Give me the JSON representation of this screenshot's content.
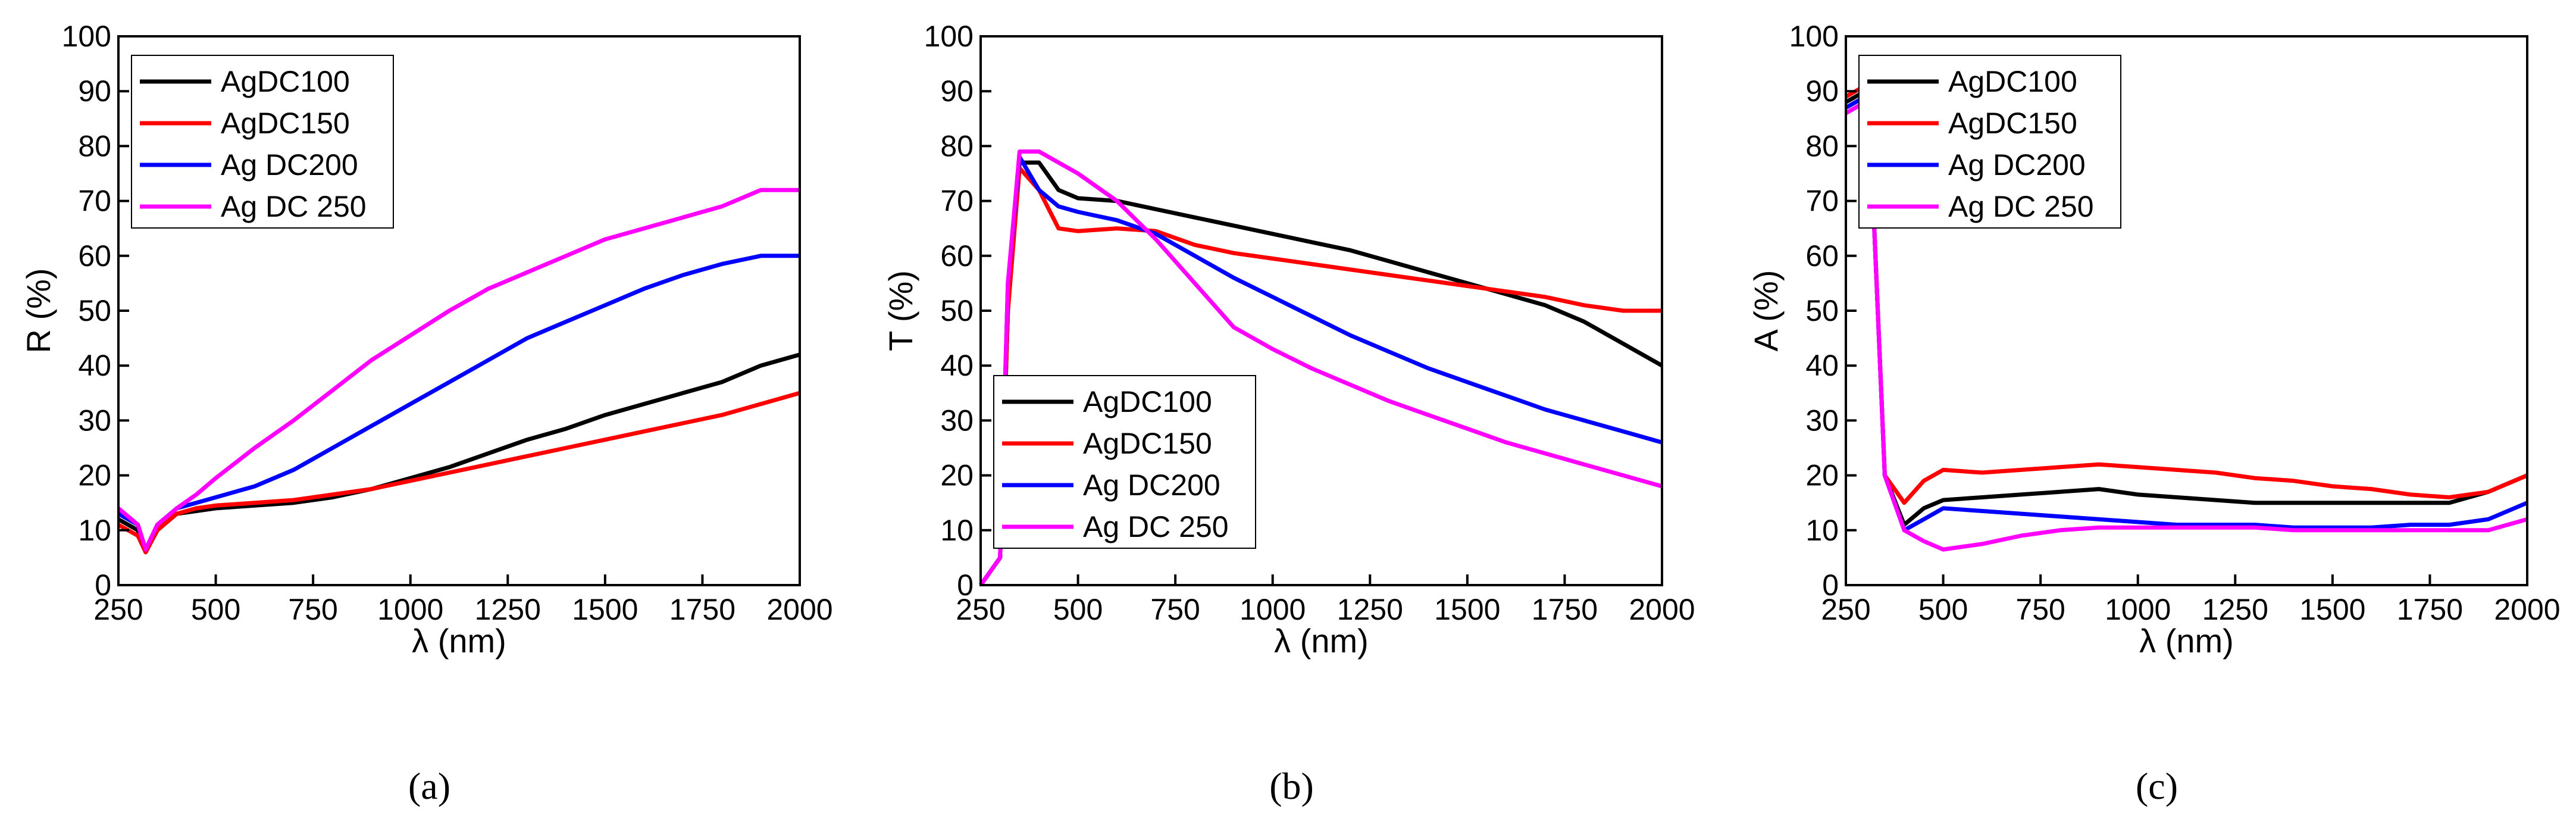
{
  "chart_data": [
    {
      "type": "line",
      "caption": "(a)",
      "ylabel": "R (%)",
      "xlabel": "λ (nm)",
      "legend": "upper left",
      "x": [
        250,
        300,
        320,
        350,
        400,
        450,
        500,
        600,
        700,
        800,
        900,
        1000,
        1100,
        1200,
        1300,
        1400,
        1500,
        1600,
        1700,
        1800,
        1900,
        2000
      ],
      "xlim": [
        250,
        2000
      ],
      "xticks": [
        250,
        500,
        750,
        1000,
        1250,
        1500,
        1750,
        2000
      ],
      "ylim": [
        0,
        100
      ],
      "yticks": [
        0,
        10,
        20,
        30,
        40,
        50,
        60,
        70,
        80,
        90,
        100
      ],
      "series": [
        {
          "name": "AgDC100",
          "color": "#000000",
          "values": [
            12,
            10,
            6,
            10,
            13,
            13.5,
            14,
            14.5,
            15,
            16,
            17.5,
            19.5,
            21.5,
            24,
            26.5,
            28.5,
            31,
            33,
            35,
            37,
            40,
            42
          ]
        },
        {
          "name": "AgDC150",
          "color": "#ff0000",
          "values": [
            11,
            9,
            6,
            10,
            13,
            14,
            14.5,
            15,
            15.5,
            16.5,
            17.5,
            19,
            20.5,
            22,
            23.5,
            25,
            26.5,
            28,
            29.5,
            31,
            33,
            35
          ]
        },
        {
          "name": "Ag DC200",
          "color": "#0000ff",
          "values": [
            13,
            11,
            6.5,
            11,
            14,
            15,
            16,
            18,
            21,
            25,
            29,
            33,
            37,
            41,
            45,
            48,
            51,
            54,
            56.5,
            58.5,
            60,
            60
          ]
        },
        {
          "name": "Ag DC 250",
          "color": "#ff00ff",
          "values": [
            14,
            11,
            6.5,
            11,
            14,
            16.5,
            19.5,
            25,
            30,
            35.5,
            41,
            45.5,
            50,
            54,
            57,
            60,
            63,
            65,
            67,
            69,
            72,
            72
          ]
        }
      ]
    },
    {
      "type": "line",
      "caption": "(b)",
      "ylabel": "T (%)",
      "xlabel": "λ (nm)",
      "legend": "lower left",
      "x": [
        250,
        300,
        320,
        350,
        400,
        450,
        500,
        600,
        700,
        800,
        900,
        1000,
        1100,
        1200,
        1300,
        1400,
        1500,
        1600,
        1700,
        1800,
        1900,
        2000
      ],
      "xlim": [
        250,
        2000
      ],
      "xticks": [
        250,
        500,
        750,
        1000,
        1250,
        1500,
        1750,
        2000
      ],
      "ylim": [
        0,
        100
      ],
      "yticks": [
        0,
        10,
        20,
        30,
        40,
        50,
        60,
        70,
        80,
        90,
        100
      ],
      "series": [
        {
          "name": "AgDC100",
          "color": "#000000",
          "values": [
            0,
            5,
            50,
            77,
            77,
            72,
            70.5,
            70,
            68.5,
            67,
            65.5,
            64,
            62.5,
            61,
            59,
            57,
            55,
            53,
            51,
            48,
            44,
            40
          ]
        },
        {
          "name": "AgDC150",
          "color": "#ff0000",
          "values": [
            0,
            5,
            50,
            76,
            72,
            65,
            64.5,
            65,
            64.5,
            62,
            60.5,
            59.5,
            58.5,
            57.5,
            56.5,
            55.5,
            54.5,
            53.5,
            52.5,
            51,
            50,
            50
          ]
        },
        {
          "name": "Ag DC200",
          "color": "#0000ff",
          "values": [
            0,
            5,
            55,
            78,
            72,
            69,
            68,
            66.5,
            64,
            60,
            56,
            52.5,
            49,
            45.5,
            42.5,
            39.5,
            37,
            34.5,
            32,
            30,
            28,
            26
          ]
        },
        {
          "name": "Ag DC 250",
          "color": "#ff00ff",
          "values": [
            0,
            5,
            55,
            79,
            79,
            77,
            75,
            70,
            63,
            55,
            47,
            43,
            39.5,
            36.5,
            33.5,
            31,
            28.5,
            26,
            24,
            22,
            20,
            18
          ]
        }
      ]
    },
    {
      "type": "line",
      "caption": "(c)",
      "ylabel": "A (%)",
      "xlabel": "λ (nm)",
      "legend": "upper left",
      "x": [
        250,
        300,
        320,
        350,
        400,
        450,
        500,
        600,
        700,
        800,
        900,
        1000,
        1100,
        1200,
        1300,
        1400,
        1500,
        1600,
        1700,
        1800,
        1900,
        2000
      ],
      "xlim": [
        250,
        2000
      ],
      "xticks": [
        250,
        500,
        750,
        1000,
        1250,
        1500,
        1750,
        2000
      ],
      "ylim": [
        0,
        100
      ],
      "yticks": [
        0,
        10,
        20,
        30,
        40,
        50,
        60,
        70,
        80,
        90,
        100
      ],
      "series": [
        {
          "name": "AgDC100",
          "color": "#000000",
          "values": [
            88,
            90,
            70,
            20,
            11,
            14,
            15.5,
            16,
            16.5,
            17,
            17.5,
            16.5,
            16,
            15.5,
            15,
            15,
            15,
            15,
            15,
            15,
            17,
            20
          ]
        },
        {
          "name": "AgDC150",
          "color": "#ff0000",
          "values": [
            89,
            91,
            70,
            20,
            15,
            19,
            21,
            20.5,
            21,
            21.5,
            22,
            21.5,
            21,
            20.5,
            19.5,
            19,
            18,
            17.5,
            16.5,
            16,
            17,
            20
          ]
        },
        {
          "name": "Ag DC200",
          "color": "#0000ff",
          "values": [
            87,
            89,
            70,
            20,
            10,
            12,
            14,
            13.5,
            13,
            12.5,
            12,
            11.5,
            11,
            11,
            11,
            10.5,
            10.5,
            10.5,
            11,
            11,
            12,
            15
          ]
        },
        {
          "name": "Ag DC 250",
          "color": "#ff00ff",
          "values": [
            86,
            88,
            70,
            20,
            10,
            8,
            6.5,
            7.5,
            9,
            10,
            10.5,
            10.5,
            10.5,
            10.5,
            10.5,
            10,
            10,
            10,
            10,
            10,
            10,
            12
          ]
        }
      ]
    }
  ]
}
